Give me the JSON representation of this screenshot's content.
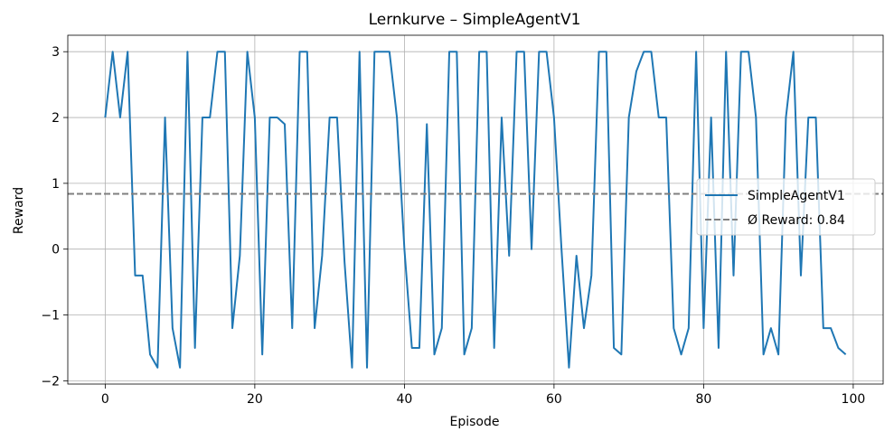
{
  "chart_data": {
    "type": "line",
    "title": "Lernkurve – SimpleAgentV1",
    "xlabel": "Episode",
    "ylabel": "Reward",
    "xlim": [
      -5,
      104
    ],
    "ylim": [
      -2.05,
      3.25
    ],
    "xticks": [
      0,
      20,
      40,
      60,
      80,
      100
    ],
    "yticks": [
      -2,
      -1,
      0,
      1,
      2,
      3
    ],
    "grid": true,
    "legend_position": "center-right",
    "series": [
      {
        "name": "SimpleAgentV1",
        "color": "#1f77b4",
        "style": "solid",
        "x": [
          0,
          1,
          2,
          3,
          4,
          5,
          6,
          7,
          8,
          9,
          10,
          11,
          12,
          13,
          14,
          15,
          16,
          17,
          18,
          19,
          20,
          21,
          22,
          23,
          24,
          25,
          26,
          27,
          28,
          29,
          30,
          31,
          32,
          33,
          34,
          35,
          36,
          37,
          38,
          39,
          40,
          41,
          42,
          43,
          44,
          45,
          46,
          47,
          48,
          49,
          50,
          51,
          52,
          53,
          54,
          55,
          56,
          57,
          58,
          59,
          60,
          61,
          62,
          63,
          64,
          65,
          66,
          67,
          68,
          69,
          70,
          71,
          72,
          73,
          74,
          75,
          76,
          77,
          78,
          79,
          80,
          81,
          82,
          83,
          84,
          85,
          86,
          87,
          88,
          89,
          90,
          91,
          92,
          93,
          94,
          95,
          96,
          97,
          98,
          99
        ],
        "y": [
          2,
          3,
          2,
          3,
          -0.4,
          -0.4,
          -1.6,
          -1.8,
          2,
          -1.2,
          -1.8,
          3,
          -1.5,
          2,
          2,
          3,
          3,
          -1.2,
          -0.1,
          3,
          2,
          -1.6,
          2,
          2,
          1.9,
          -1.2,
          3,
          3,
          -1.2,
          -0.1,
          2,
          2,
          -0.2,
          -1.8,
          3,
          -1.8,
          3,
          3,
          3,
          2,
          0,
          -1.5,
          -1.5,
          1.9,
          -1.6,
          -1.2,
          3,
          3,
          -1.6,
          -1.2,
          3,
          3,
          -1.5,
          2,
          -0.1,
          3,
          3,
          0,
          3,
          3,
          2,
          0,
          -1.8,
          -0.1,
          -1.2,
          -0.4,
          3,
          3,
          -1.5,
          -1.6,
          2,
          2.7,
          3,
          3,
          2,
          2,
          -1.2,
          -1.6,
          -1.2,
          3,
          -1.2,
          2,
          -1.5,
          3,
          -0.4,
          3,
          3,
          2,
          -1.6,
          -1.2,
          -1.6,
          2,
          3,
          -0.4,
          2,
          2,
          -1.2,
          -1.2,
          -1.5,
          -1.6
        ]
      },
      {
        "name": "Ø Reward: 0.84",
        "color": "#7f7f7f",
        "style": "dashed",
        "y": 0.84
      }
    ]
  }
}
